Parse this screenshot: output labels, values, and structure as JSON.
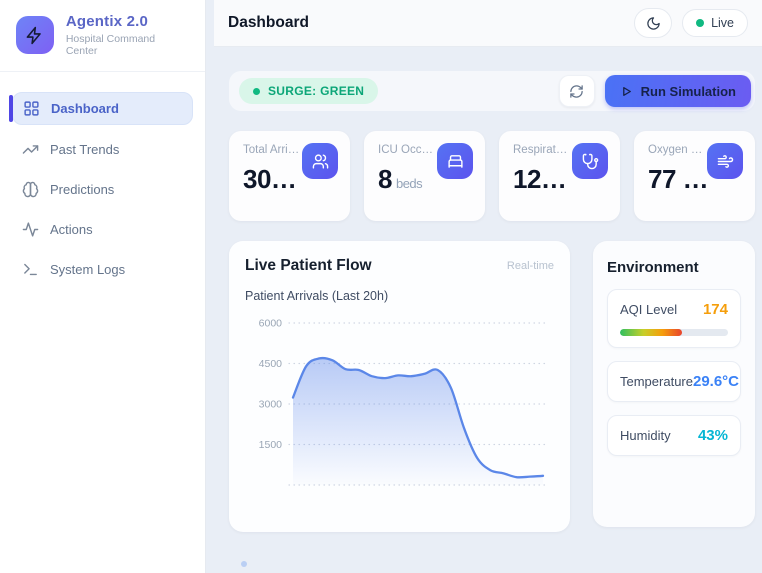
{
  "brand": {
    "name": "Agentix 2.0",
    "subtitle": "Hospital Command Center"
  },
  "sidebar": {
    "items": [
      {
        "label": "Dashboard",
        "icon": "dashboard-grid-icon",
        "active": true
      },
      {
        "label": "Past Trends",
        "icon": "trending-up-icon",
        "active": false
      },
      {
        "label": "Predictions",
        "icon": "brain-icon",
        "active": false
      },
      {
        "label": "Actions",
        "icon": "activity-icon",
        "active": false
      },
      {
        "label": "System Logs",
        "icon": "terminal-icon",
        "active": false
      }
    ]
  },
  "header": {
    "title": "Dashboard",
    "live_label": "Live"
  },
  "surge": {
    "status_label": "SURGE: GREEN",
    "run_button_label": "Run Simulation"
  },
  "stats": [
    {
      "label": "Total Arri…",
      "value": "30…",
      "suffix": "",
      "icon": "users-icon"
    },
    {
      "label": "ICU Occ…",
      "value": "8",
      "suffix": "beds",
      "icon": "bed-icon"
    },
    {
      "label": "Respirat…",
      "value": "12…",
      "suffix": "",
      "icon": "stethoscope-icon"
    },
    {
      "label": "Oxygen …",
      "value": "77 …",
      "suffix": "",
      "icon": "wind-icon"
    }
  ],
  "patient_flow": {
    "title": "Live Patient Flow",
    "badge": "Real-time",
    "subtitle": "Patient Arrivals (Last 20h)"
  },
  "chart_data": {
    "type": "area",
    "title": "Patient Arrivals (Last 20h)",
    "values": [
      3240,
      4400,
      4690,
      4620,
      4290,
      4260,
      4030,
      3960,
      4060,
      4030,
      4120,
      4260,
      3600,
      2100,
      1000,
      550,
      430,
      290,
      310,
      340
    ],
    "x_note": "20 hourly samples, x tick labels not visible",
    "ylim": [
      0,
      6000
    ],
    "yticks": [
      {
        "value": 6000,
        "label": "6000"
      },
      {
        "value": 4500,
        "label": "4500"
      },
      {
        "value": 3000,
        "label": "3000"
      },
      {
        "value": 1500,
        "label": "1500"
      },
      {
        "value": 0,
        "label": ""
      }
    ],
    "grid": "dotted horizontal",
    "legend": "none",
    "line_color": "#5b87e8",
    "fill": "vertical blue gradient fading to transparent"
  },
  "environment": {
    "title": "Environment",
    "metrics": [
      {
        "label": "AQI Level",
        "value": "174",
        "color": "#f59e0b",
        "bar_percent": 57
      },
      {
        "label": "Temperature",
        "value": "29.6°C",
        "color": "#3b82f6"
      },
      {
        "label": "Humidity",
        "value": "43%",
        "color": "#06b6d4"
      }
    ]
  },
  "colors": {
    "accent_indigo": "#4f46e5",
    "button_gradient": [
      "#4a72f5",
      "#6b5cf2"
    ],
    "surge_green_bg": "#d9f6e9",
    "surge_green_text": "#0ca678",
    "live_dot": "#10b981",
    "main_bg": "#e9eef6",
    "sidebar_bg": "#ffffff"
  }
}
